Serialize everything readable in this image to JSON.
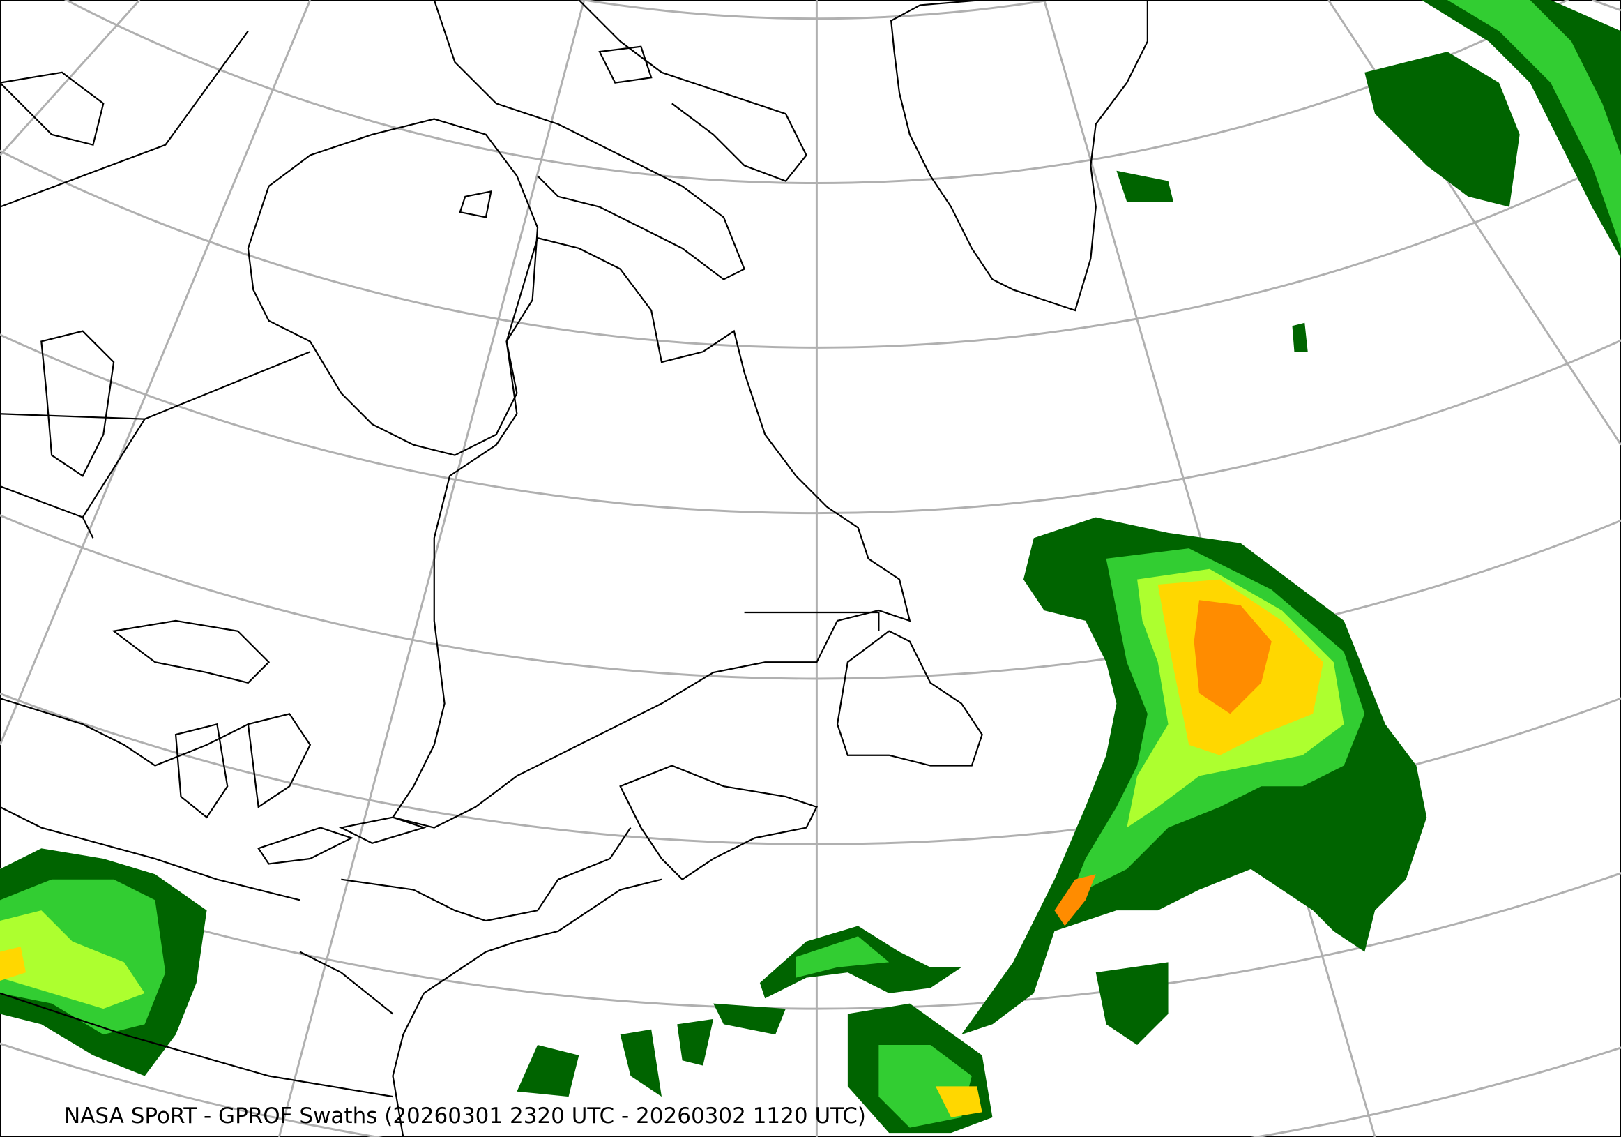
{
  "caption": "NASA SPoRT - GPROF Swaths (20260301 2320 UTC - 20260302 1120 UTC)",
  "colors": {
    "graticule": "#b0b0b0",
    "coastline": "#000000",
    "precip_light": "#006400",
    "precip_low": "#00a000",
    "precip_mid": "#32cd32",
    "precip_high": "#adff2f",
    "precip_higher": "#ffd700",
    "precip_heavy": "#ff8c00"
  }
}
